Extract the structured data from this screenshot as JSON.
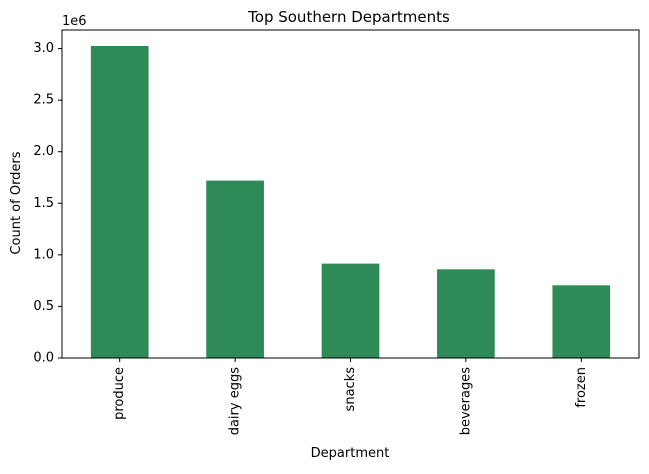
{
  "colors": {
    "bar": "#2e8b57",
    "axis": "#000000",
    "background": "#ffffff"
  },
  "chart_data": {
    "type": "bar",
    "title": "Top Southern Departments",
    "xlabel": "Department",
    "ylabel": "Count of Orders",
    "y_scale_label": "1e6",
    "categories": [
      "produce",
      "dairy eggs",
      "snacks",
      "beverages",
      "frozen"
    ],
    "values": [
      3025000,
      1720000,
      915000,
      860000,
      705000
    ],
    "ylim": [
      0,
      3180000
    ],
    "yticks": [
      0,
      500000,
      1000000,
      1500000,
      2000000,
      2500000,
      3000000
    ],
    "ytick_labels": [
      "0.0",
      "0.5",
      "1.0",
      "1.5",
      "2.0",
      "2.5",
      "3.0"
    ],
    "grid": false,
    "legend": "none"
  }
}
